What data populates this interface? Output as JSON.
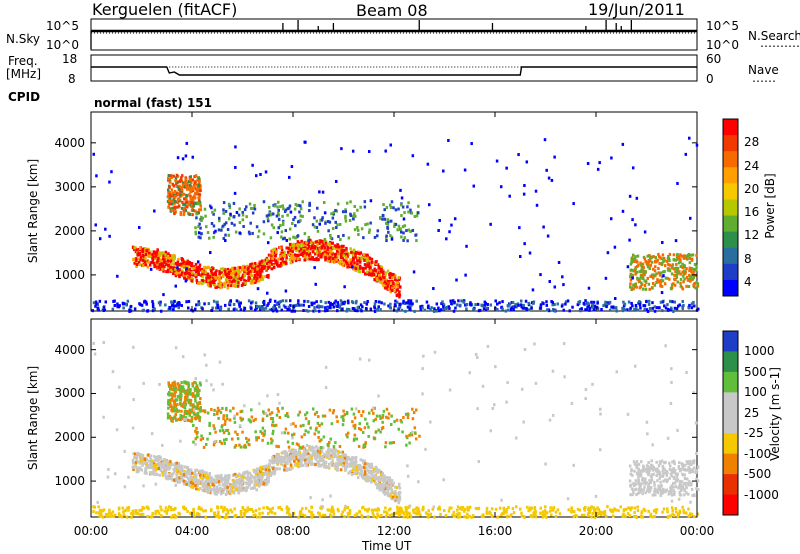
{
  "header": {
    "station": "Kerguelen (fitACF)",
    "beam": "Beam 08",
    "date": "19/Jun/2011"
  },
  "panels": {
    "nsky": {
      "label": "N.Sky",
      "tick_top": "10^5",
      "tick_bot": "10^0",
      "right_top": "10^5",
      "right_bot": "10^0",
      "right_label": "N.Search"
    },
    "freq": {
      "label_l1": "Freq.",
      "label_l2": "[MHz]",
      "tick_top": "18",
      "tick_bot": "8",
      "right_top": "60",
      "right_bot": "0",
      "right_label": "Nave"
    },
    "cpid": {
      "label": "CPID",
      "value": "normal (fast) 151"
    }
  },
  "chart_data": [
    {
      "type": "heatmap",
      "name": "power",
      "ylabel": "Slant Range [km]",
      "yticks": [
        "4000",
        "3000",
        "2000",
        "1000"
      ],
      "ytick_values": [
        4000,
        3000,
        2000,
        1000
      ],
      "ylim": [
        180,
        4700
      ],
      "colorbar": {
        "label": "Power [dB]",
        "ticks": [
          "28",
          "24",
          "20",
          "16",
          "12",
          "8",
          "4"
        ],
        "colors": [
          "#ff0000",
          "#f23a00",
          "#f66a00",
          "#ffa000",
          "#f6c800",
          "#b8c800",
          "#5fae2f",
          "#2c8f4a",
          "#2a6ea0",
          "#1f3ec8",
          "#0000ff"
        ]
      }
    },
    {
      "type": "heatmap",
      "name": "velocity",
      "ylabel": "Slant Range [km]",
      "yticks": [
        "4000",
        "3000",
        "2000",
        "1000"
      ],
      "ytick_values": [
        4000,
        3000,
        2000,
        1000
      ],
      "ylim": [
        180,
        4700
      ],
      "colorbar": {
        "label": "Velocity [m s-1]",
        "ticks": [
          "1000",
          "500",
          "100",
          "25",
          "-25",
          "-100",
          "-500",
          "-1000"
        ],
        "colors": [
          "#1f3ec8",
          "#2c8f4a",
          "#5fbf3a",
          "#c8c8c8",
          "#c8c8c8",
          "#f6c800",
          "#f08000",
          "#e83000",
          "#ff0000"
        ]
      }
    }
  ],
  "xaxis": {
    "label": "Time UT",
    "ticks": [
      "00:00",
      "04:00",
      "08:00",
      "12:00",
      "16:00",
      "20:00",
      "00:00"
    ],
    "hours": [
      0,
      4,
      8,
      12,
      16,
      20,
      24
    ]
  }
}
